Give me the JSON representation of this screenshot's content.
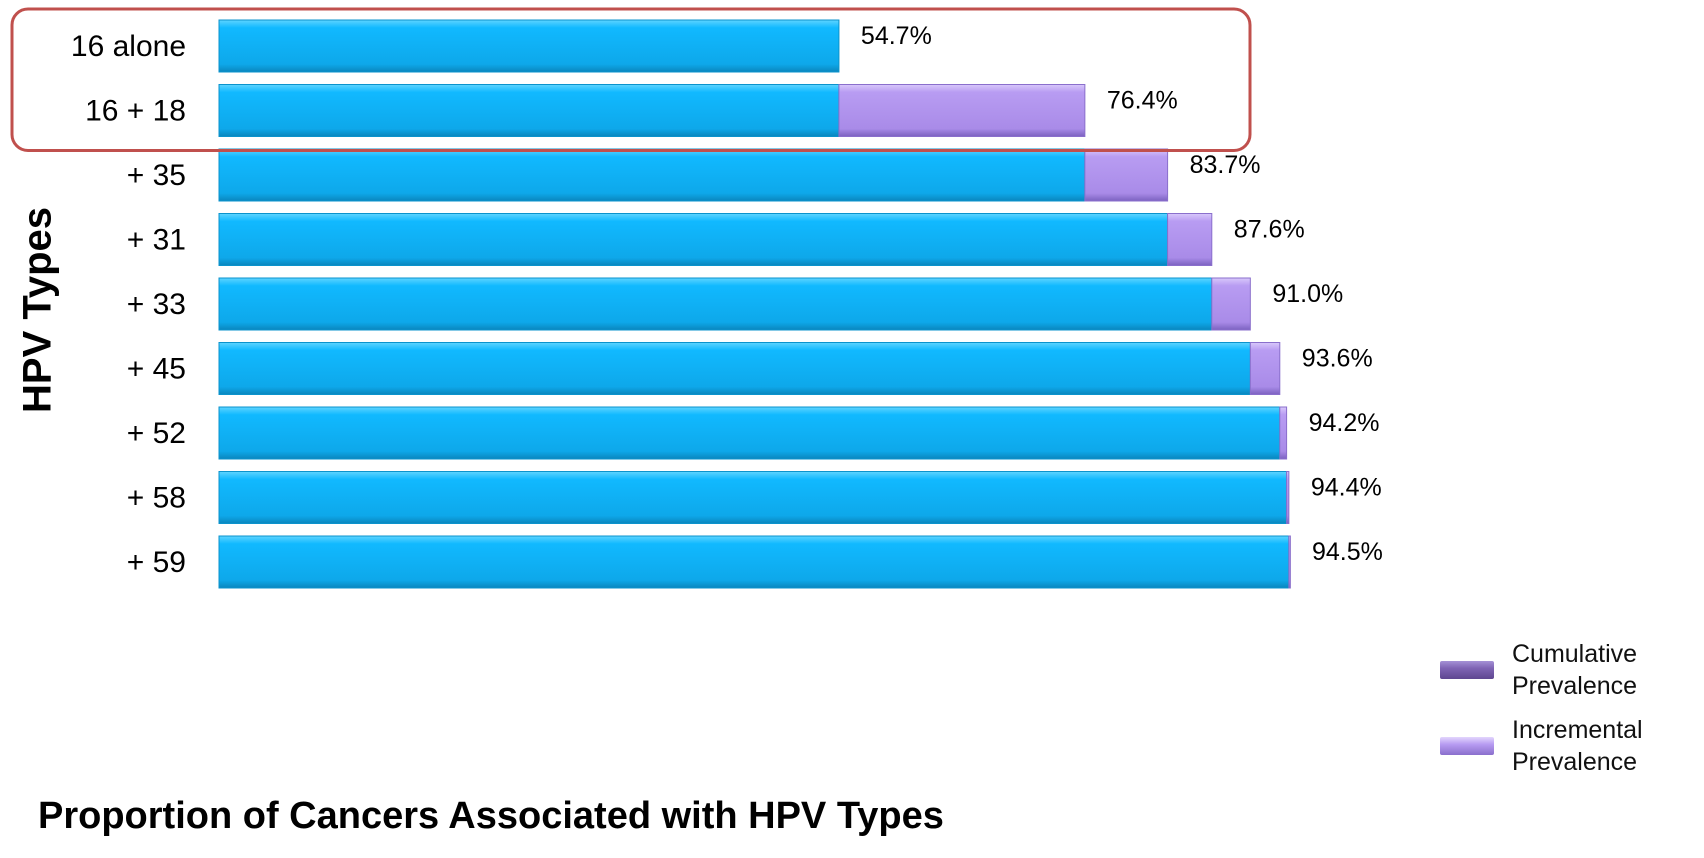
{
  "chart_data": {
    "type": "bar",
    "orientation": "horizontal",
    "stacked": true,
    "title": "Proportion of Cancers Associated with HPV Types",
    "ylabel": "HPV Types",
    "xlabel": "",
    "categories": [
      "16 alone",
      "16 + 18",
      "+ 35",
      "+ 31",
      "+ 33",
      "+ 45",
      "+ 52",
      "+ 58",
      "+ 59"
    ],
    "series": [
      {
        "name": "Cumulative Prevalence",
        "values": [
          54.7,
          54.7,
          76.4,
          83.7,
          87.6,
          91.0,
          93.6,
          94.2,
          94.4
        ]
      },
      {
        "name": "Incremental Prevalence",
        "values": [
          0,
          21.7,
          7.3,
          3.9,
          3.4,
          2.6,
          0.6,
          0.2,
          0.1
        ]
      }
    ],
    "data_labels": [
      "54.7%",
      "76.4%",
      "83.7%",
      "87.6%",
      "91.0%",
      "93.6%",
      "94.2%",
      "94.4%",
      "94.5%"
    ],
    "xlim": [
      0,
      94.5
    ],
    "grid": false,
    "legend_position": "bottom-right",
    "highlighted_categories": [
      "16 alone",
      "16 + 18"
    ],
    "colors": {
      "cumulative_bar": "#11b9ff",
      "incremental_bar": "#b89cf2",
      "legend_cumulative": "#7f64b4",
      "legend_incremental": "#b89cf2",
      "highlight_border": "#c0504d"
    }
  }
}
